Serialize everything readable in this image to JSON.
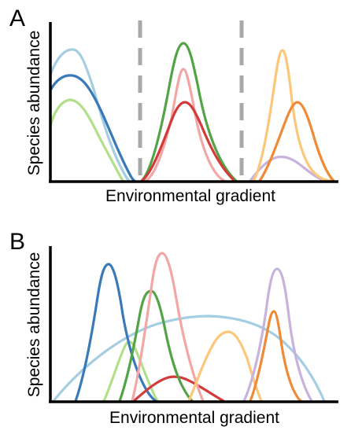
{
  "panels": [
    {
      "label": "A",
      "y_axis_label": "Species abundance",
      "x_axis_label": "Environmental gradient",
      "has_boundaries": true,
      "curves": [
        {
          "name": "light-blue-curve",
          "color": "#a6cee3"
        },
        {
          "name": "dark-blue-curve",
          "color": "#3a7ab8"
        },
        {
          "name": "light-green-curve",
          "color": "#b2df8a"
        },
        {
          "name": "green-curve",
          "color": "#52a447"
        },
        {
          "name": "pink-curve",
          "color": "#f3a6a6"
        },
        {
          "name": "red-curve",
          "color": "#d33a3a"
        },
        {
          "name": "light-orange-curve",
          "color": "#fdc77a"
        },
        {
          "name": "orange-curve",
          "color": "#ef8a36"
        },
        {
          "name": "lavender-curve",
          "color": "#c7b3db"
        }
      ]
    },
    {
      "label": "B",
      "y_axis_label": "Species abundance",
      "x_axis_label": "Environmental gradient",
      "has_boundaries": false,
      "curves": [
        {
          "name": "light-blue-curve",
          "color": "#a6cee3"
        },
        {
          "name": "dark-blue-curve",
          "color": "#3a7ab8"
        },
        {
          "name": "light-green-curve",
          "color": "#b2df8a"
        },
        {
          "name": "green-curve",
          "color": "#52a447"
        },
        {
          "name": "pink-curve",
          "color": "#f3a6a6"
        },
        {
          "name": "red-curve",
          "color": "#d33a3a"
        },
        {
          "name": "light-orange-curve",
          "color": "#fdc77a"
        },
        {
          "name": "orange-curve",
          "color": "#ef8a36"
        },
        {
          "name": "lavender-curve",
          "color": "#c7b3db"
        }
      ]
    }
  ],
  "colors": {
    "axis": "#000000",
    "boundary": "#a9a9a9",
    "background": "#ffffff"
  }
}
